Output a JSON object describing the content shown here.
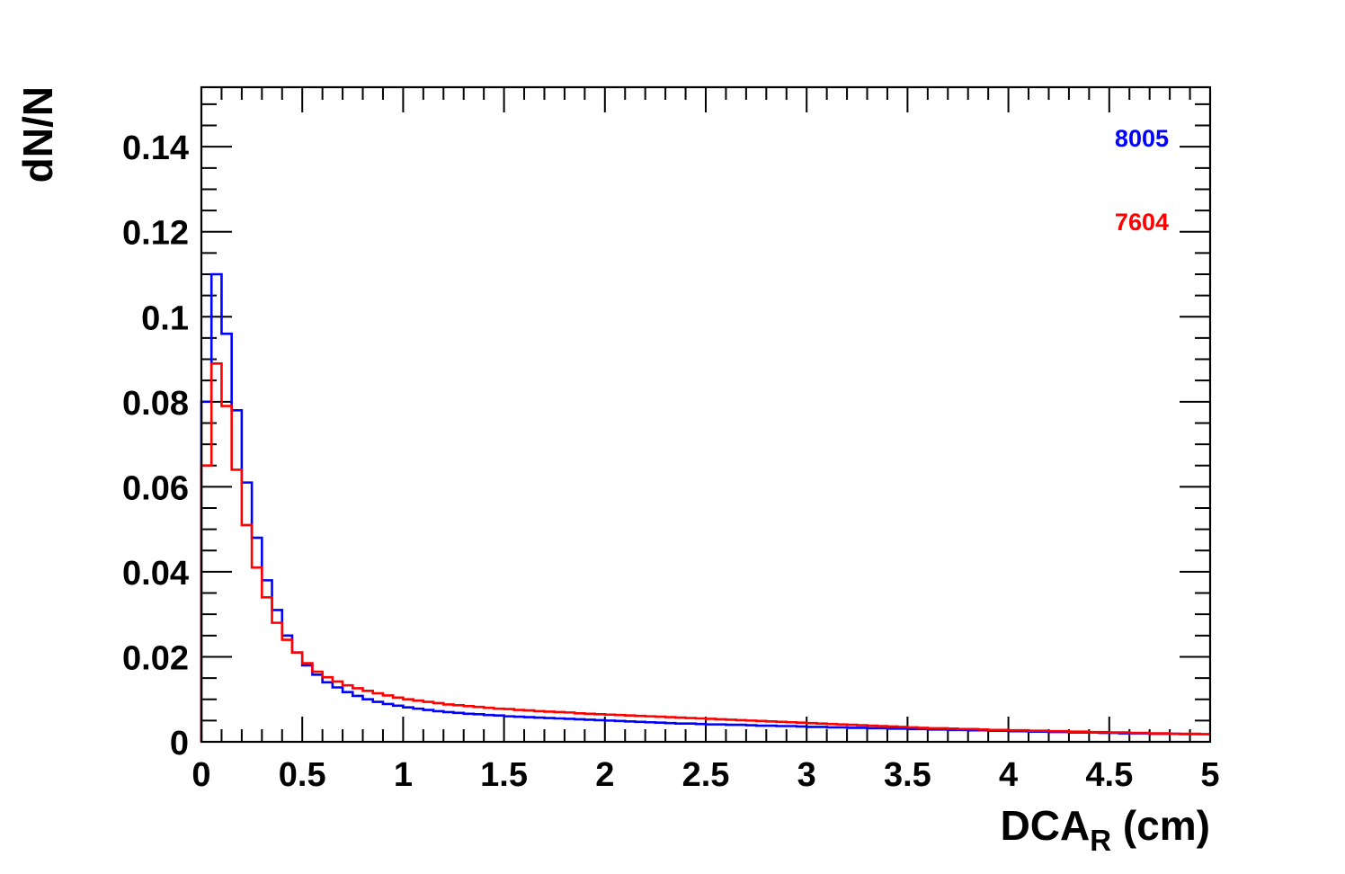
{
  "chart_data": {
    "type": "line",
    "title": "",
    "xlabel": "DCA",
    "xlabel_subscript": "R",
    "xlabel_unit": " (cm)",
    "ylabel": "dN/N",
    "xlim": [
      0,
      5
    ],
    "ylim": [
      0,
      0.154
    ],
    "xticks": [
      "0",
      "0.5",
      "1",
      "1.5",
      "2",
      "2.5",
      "3",
      "3.5",
      "4",
      "4.5",
      "5"
    ],
    "yticks": [
      "0",
      "0.02",
      "0.04",
      "0.06",
      "0.08",
      "0.1",
      "0.12",
      "0.14"
    ],
    "grid": false,
    "legend_placement": "top-right",
    "bin_width": 0.05,
    "series": [
      {
        "name": "8005",
        "color": "#0000ff",
        "values": [
          0.08,
          0.11,
          0.096,
          0.078,
          0.061,
          0.048,
          0.038,
          0.031,
          0.025,
          0.021,
          0.018,
          0.0158,
          0.014,
          0.0128,
          0.0117,
          0.0108,
          0.01,
          0.0094,
          0.0089,
          0.0085,
          0.0081,
          0.0078,
          0.0075,
          0.0072,
          0.007,
          0.0068,
          0.0066,
          0.0065,
          0.0063,
          0.0062,
          0.006,
          0.0059,
          0.0058,
          0.0057,
          0.0056,
          0.0055,
          0.0054,
          0.0053,
          0.0052,
          0.0051,
          0.005,
          0.0049,
          0.0048,
          0.0047,
          0.0046,
          0.0045,
          0.0044,
          0.0043,
          0.0043,
          0.0042,
          0.0041,
          0.0041,
          0.004,
          0.004,
          0.0039,
          0.0038,
          0.0038,
          0.0037,
          0.0037,
          0.0036,
          0.0035,
          0.0035,
          0.0034,
          0.0034,
          0.0033,
          0.0033,
          0.0032,
          0.0032,
          0.0031,
          0.0031,
          0.003,
          0.003,
          0.0029,
          0.0029,
          0.0028,
          0.0028,
          0.0027,
          0.0027,
          0.0026,
          0.0026,
          0.0025,
          0.0025,
          0.0024,
          0.0024,
          0.0023,
          0.0023,
          0.0022,
          0.0022,
          0.0022,
          0.0021,
          0.0021,
          0.002,
          0.002,
          0.002,
          0.0019,
          0.0019,
          0.0019,
          0.0018,
          0.0018,
          0.0018
        ]
      },
      {
        "name": "7604",
        "color": "#ff0000",
        "values": [
          0.065,
          0.089,
          0.079,
          0.064,
          0.051,
          0.041,
          0.034,
          0.028,
          0.024,
          0.021,
          0.0185,
          0.0165,
          0.0152,
          0.0142,
          0.0133,
          0.0126,
          0.012,
          0.0114,
          0.0109,
          0.0104,
          0.01,
          0.0097,
          0.0094,
          0.0091,
          0.0088,
          0.0086,
          0.0084,
          0.0082,
          0.008,
          0.0078,
          0.0077,
          0.0075,
          0.0074,
          0.0072,
          0.0071,
          0.007,
          0.0069,
          0.0067,
          0.0066,
          0.0065,
          0.0064,
          0.0063,
          0.0062,
          0.0061,
          0.006,
          0.0059,
          0.0058,
          0.0057,
          0.0056,
          0.0055,
          0.0054,
          0.0053,
          0.0052,
          0.0051,
          0.005,
          0.0049,
          0.0048,
          0.0047,
          0.0046,
          0.0045,
          0.0044,
          0.0043,
          0.0042,
          0.0041,
          0.004,
          0.0039,
          0.0038,
          0.0037,
          0.0036,
          0.0035,
          0.0034,
          0.0033,
          0.0032,
          0.0032,
          0.0031,
          0.003,
          0.003,
          0.0029,
          0.0028,
          0.0028,
          0.0027,
          0.0027,
          0.0026,
          0.0026,
          0.0025,
          0.0025,
          0.0024,
          0.0024,
          0.0023,
          0.0023,
          0.0022,
          0.0022,
          0.0021,
          0.0021,
          0.002,
          0.002,
          0.0019,
          0.0019,
          0.0019,
          0.0018
        ]
      }
    ]
  }
}
